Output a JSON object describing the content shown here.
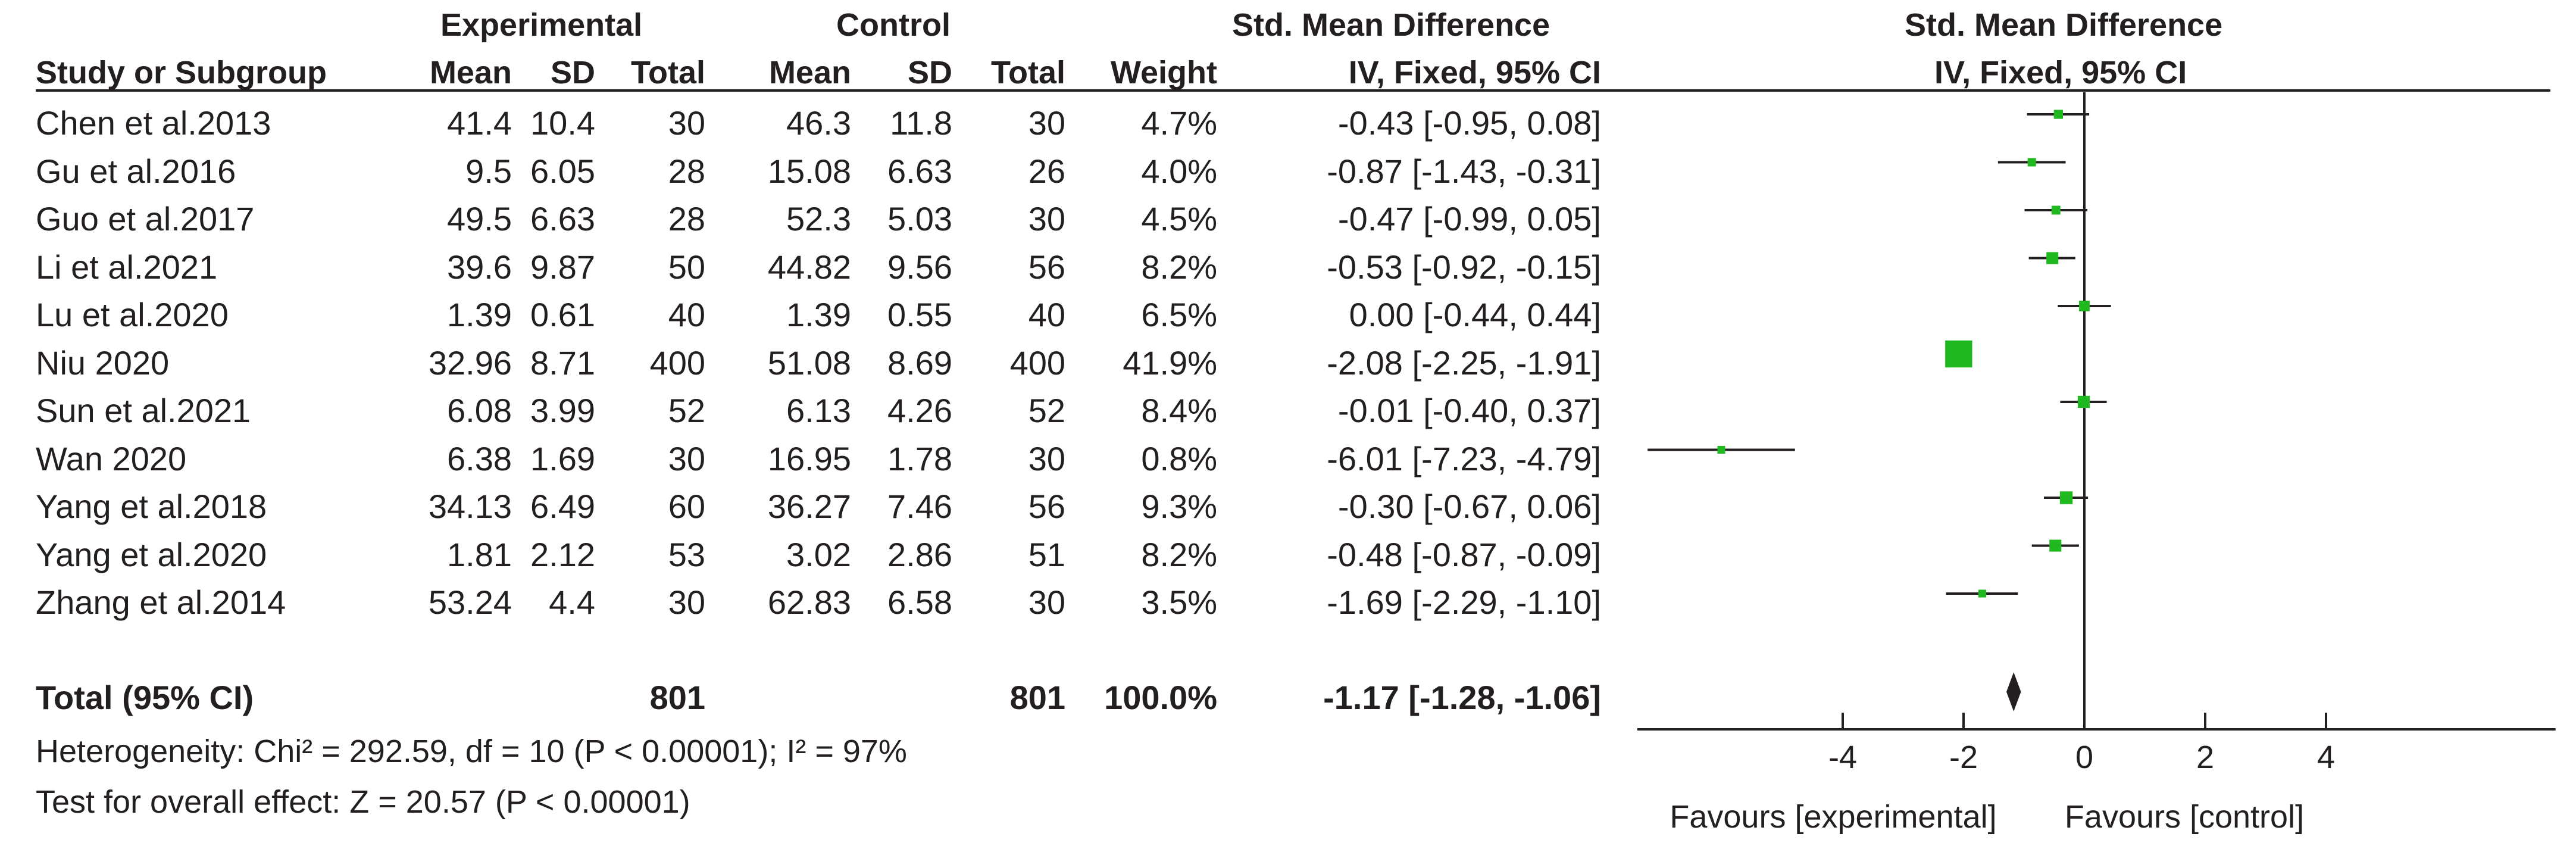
{
  "header": {
    "group_experimental": "Experimental",
    "group_control": "Control",
    "smd_left": "Std. Mean Difference",
    "smd_right": "Std. Mean Difference",
    "col_study": "Study or Subgroup",
    "col_mean_e": "Mean",
    "col_sd_e": "SD",
    "col_total_e": "Total",
    "col_mean_c": "Mean",
    "col_sd_c": "SD",
    "col_total_c": "Total",
    "col_weight": "Weight",
    "method_left": "IV, Fixed, 95% CI",
    "method_right": "IV, Fixed, 95% CI"
  },
  "studies": [
    {
      "name": "Chen et al.2013",
      "mean_e": "41.4",
      "sd_e": "10.4",
      "total_e": "30",
      "mean_c": "46.3",
      "sd_c": "11.8",
      "total_c": "30",
      "weight": "4.7%",
      "ci_text": "-0.43 [-0.95, 0.08]"
    },
    {
      "name": "Gu et al.2016",
      "mean_e": "9.5",
      "sd_e": "6.05",
      "total_e": "28",
      "mean_c": "15.08",
      "sd_c": "6.63",
      "total_c": "26",
      "weight": "4.0%",
      "ci_text": "-0.87 [-1.43, -0.31]"
    },
    {
      "name": "Guo et al.2017",
      "mean_e": "49.5",
      "sd_e": "6.63",
      "total_e": "28",
      "mean_c": "52.3",
      "sd_c": "5.03",
      "total_c": "30",
      "weight": "4.5%",
      "ci_text": "-0.47 [-0.99, 0.05]"
    },
    {
      "name": "Li et al.2021",
      "mean_e": "39.6",
      "sd_e": "9.87",
      "total_e": "50",
      "mean_c": "44.82",
      "sd_c": "9.56",
      "total_c": "56",
      "weight": "8.2%",
      "ci_text": "-0.53 [-0.92, -0.15]"
    },
    {
      "name": "Lu et al.2020",
      "mean_e": "1.39",
      "sd_e": "0.61",
      "total_e": "40",
      "mean_c": "1.39",
      "sd_c": "0.55",
      "total_c": "40",
      "weight": "6.5%",
      "ci_text": "0.00 [-0.44, 0.44]"
    },
    {
      "name": "Niu 2020",
      "mean_e": "32.96",
      "sd_e": "8.71",
      "total_e": "400",
      "mean_c": "51.08",
      "sd_c": "8.69",
      "total_c": "400",
      "weight": "41.9%",
      "ci_text": "-2.08 [-2.25, -1.91]"
    },
    {
      "name": "Sun et al.2021",
      "mean_e": "6.08",
      "sd_e": "3.99",
      "total_e": "52",
      "mean_c": "6.13",
      "sd_c": "4.26",
      "total_c": "52",
      "weight": "8.4%",
      "ci_text": "-0.01 [-0.40, 0.37]"
    },
    {
      "name": "Wan 2020",
      "mean_e": "6.38",
      "sd_e": "1.69",
      "total_e": "30",
      "mean_c": "16.95",
      "sd_c": "1.78",
      "total_c": "30",
      "weight": "0.8%",
      "ci_text": "-6.01 [-7.23, -4.79]"
    },
    {
      "name": "Yang et al.2018",
      "mean_e": "34.13",
      "sd_e": "6.49",
      "total_e": "60",
      "mean_c": "36.27",
      "sd_c": "7.46",
      "total_c": "56",
      "weight": "9.3%",
      "ci_text": "-0.30 [-0.67, 0.06]"
    },
    {
      "name": "Yang et al.2020",
      "mean_e": "1.81",
      "sd_e": "2.12",
      "total_e": "53",
      "mean_c": "3.02",
      "sd_c": "2.86",
      "total_c": "51",
      "weight": "8.2%",
      "ci_text": "-0.48 [-0.87, -0.09]"
    },
    {
      "name": "Zhang et al.2014",
      "mean_e": "53.24",
      "sd_e": "4.4",
      "total_e": "30",
      "mean_c": "62.83",
      "sd_c": "6.58",
      "total_c": "30",
      "weight": "3.5%",
      "ci_text": "-1.69 [-2.29, -1.10]"
    }
  ],
  "total": {
    "label": "Total (95% CI)",
    "total_e": "801",
    "total_c": "801",
    "weight": "100.0%",
    "ci_text": "-1.17 [-1.28, -1.06]"
  },
  "footer": {
    "heterogeneity": "Heterogeneity: Chi² = 292.59, df = 10 (P < 0.00001); I² = 97%",
    "overall_effect": "Test for overall effect: Z = 20.57 (P < 0.00001)"
  },
  "axis": {
    "favours_left": "Favours [experimental]",
    "favours_right": "Favours [control]"
  },
  "colors": {
    "marker": "#1fb81f",
    "text": "#231f20",
    "line": "#231f20"
  },
  "chart_data": {
    "type": "forest",
    "title": "Std. Mean Difference IV, Fixed, 95% CI",
    "xlabel_left": "Favours [experimental]",
    "xlabel_right": "Favours [control]",
    "xlim": [
      -7.4,
      7.8
    ],
    "ticks": [
      -4,
      -2,
      0,
      2,
      4
    ],
    "tick_labels": [
      "-4",
      "-2",
      "0",
      "2",
      "4"
    ],
    "studies": [
      {
        "name": "Chen et al.2013",
        "smd": -0.43,
        "lower": -0.95,
        "upper": 0.08,
        "weight": 4.7
      },
      {
        "name": "Gu et al.2016",
        "smd": -0.87,
        "lower": -1.43,
        "upper": -0.31,
        "weight": 4.0
      },
      {
        "name": "Guo et al.2017",
        "smd": -0.47,
        "lower": -0.99,
        "upper": 0.05,
        "weight": 4.5
      },
      {
        "name": "Li et al.2021",
        "smd": -0.53,
        "lower": -0.92,
        "upper": -0.15,
        "weight": 8.2
      },
      {
        "name": "Lu et al.2020",
        "smd": 0.0,
        "lower": -0.44,
        "upper": 0.44,
        "weight": 6.5
      },
      {
        "name": "Niu 2020",
        "smd": -2.08,
        "lower": -2.25,
        "upper": -1.91,
        "weight": 41.9
      },
      {
        "name": "Sun et al.2021",
        "smd": -0.01,
        "lower": -0.4,
        "upper": 0.37,
        "weight": 8.4
      },
      {
        "name": "Wan 2020",
        "smd": -6.01,
        "lower": -7.23,
        "upper": -4.79,
        "weight": 0.8
      },
      {
        "name": "Yang et al.2018",
        "smd": -0.3,
        "lower": -0.67,
        "upper": 0.06,
        "weight": 9.3
      },
      {
        "name": "Yang et al.2020",
        "smd": -0.48,
        "lower": -0.87,
        "upper": -0.09,
        "weight": 8.2
      },
      {
        "name": "Zhang et al.2014",
        "smd": -1.69,
        "lower": -2.29,
        "upper": -1.1,
        "weight": 3.5
      }
    ],
    "pooled": {
      "smd": -1.17,
      "lower": -1.28,
      "upper": -1.06
    }
  }
}
